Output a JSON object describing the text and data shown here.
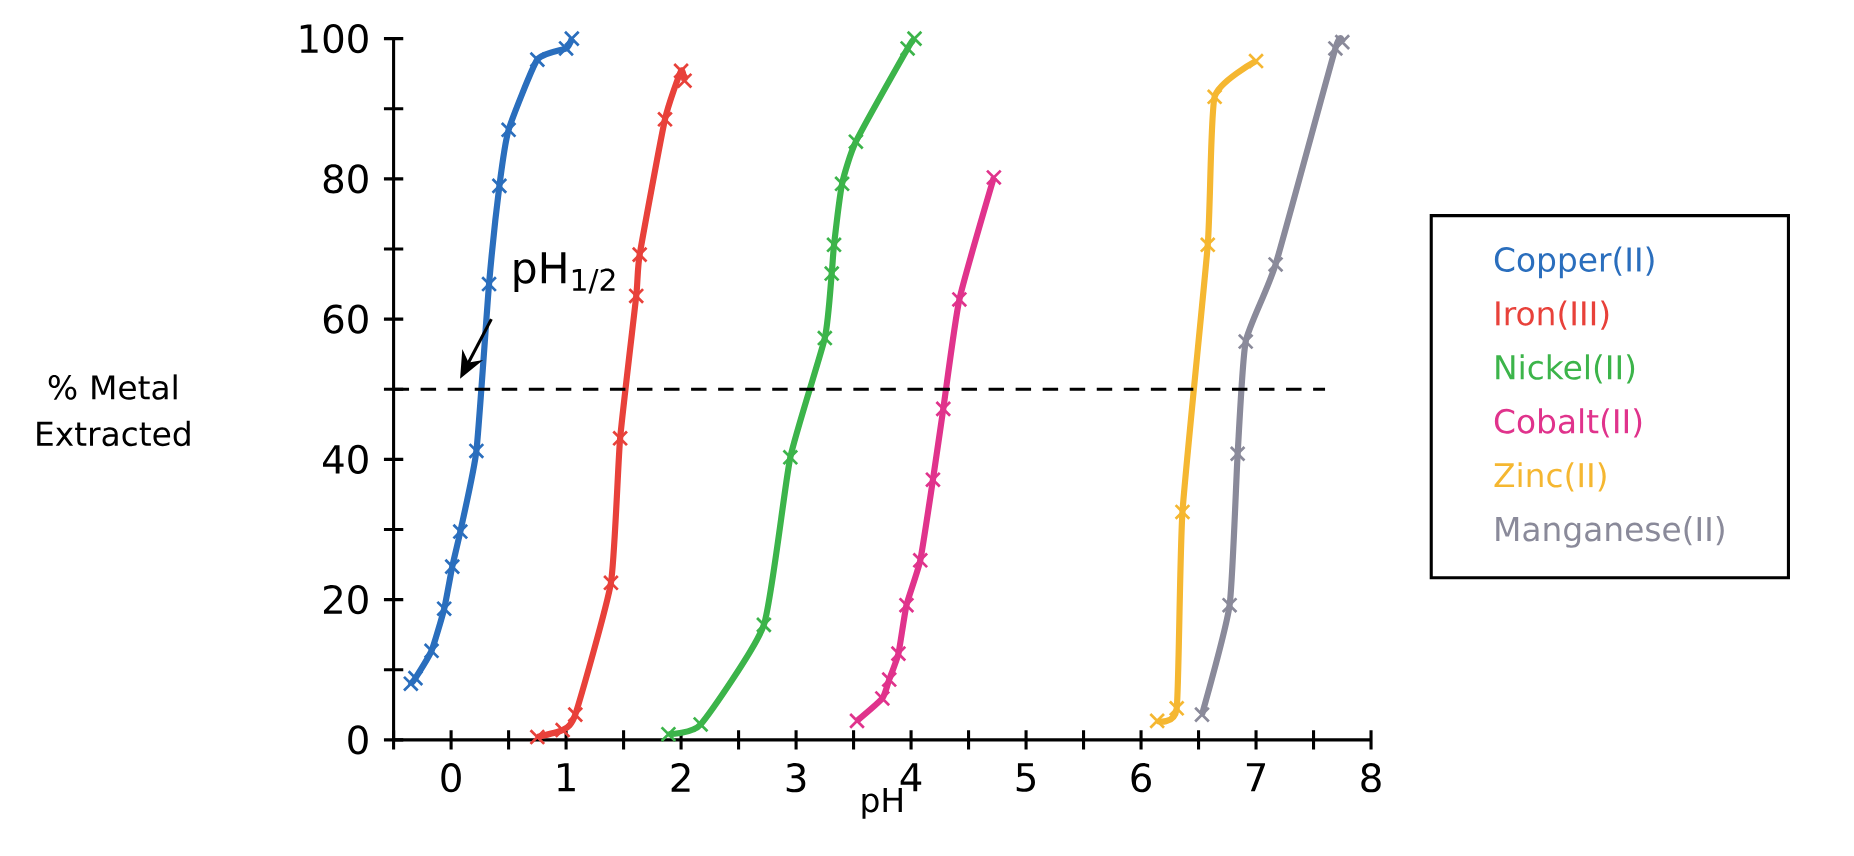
{
  "chart_data": {
    "type": "line",
    "xlabel": "pH",
    "ylabel": "% Metal Extracted",
    "xlim": [
      -0.5,
      8
    ],
    "ylim": [
      0,
      100
    ],
    "xticks": [
      {
        "value": -0.5,
        "label": null
      },
      0,
      {
        "value": 0.5,
        "label": null
      },
      1,
      {
        "value": 1.5,
        "label": null
      },
      2,
      {
        "value": 2.5,
        "label": null
      },
      3,
      {
        "value": 3.5,
        "label": null
      },
      4,
      {
        "value": 4.5,
        "label": null
      },
      5,
      {
        "value": 5.5,
        "label": null
      },
      6,
      {
        "value": 6.5,
        "label": null
      },
      7,
      {
        "value": 7.5,
        "label": null
      },
      8
    ],
    "yticks": [
      0,
      {
        "value": 10,
        "label": null
      },
      20,
      {
        "value": 30,
        "label": null
      },
      40,
      {
        "value": 50,
        "label": null
      },
      60,
      {
        "value": 70,
        "label": null
      },
      80,
      {
        "value": 90,
        "label": null
      },
      100
    ],
    "marker": "cross",
    "line_style": "solid",
    "grid": false,
    "legend": "right",
    "series": [
      {
        "name": "Copper(II)",
        "color": "#2a6ebd",
        "x": [
          -0.35,
          -0.31,
          -0.17,
          -0.06,
          0.01,
          0.08,
          0.22,
          0.33,
          0.42,
          0.5,
          0.75,
          1.0,
          1.05
        ],
        "values": [
          8,
          8.8,
          12.7,
          18.7,
          24.7,
          29.7,
          41.2,
          65,
          79,
          87,
          97,
          98.6,
          100
        ]
      },
      {
        "name": "Iron(III)",
        "color": "#e8413a",
        "x": [
          0.75,
          0.97,
          1.08,
          1.39,
          1.47,
          1.61,
          1.64,
          1.86,
          2.0,
          2.03
        ],
        "values": [
          0.4,
          1.4,
          3.6,
          22.4,
          43,
          63.3,
          69.2,
          88.5,
          95.4,
          94
        ]
      },
      {
        "name": "Nickel(II)",
        "color": "#3cb44a",
        "x": [
          1.89,
          2.17,
          2.72,
          2.95,
          3.25,
          3.31,
          3.33,
          3.4,
          3.52,
          3.97,
          4.03
        ],
        "values": [
          0.8,
          2.2,
          16.4,
          40.3,
          57.3,
          66.5,
          70.6,
          79.3,
          85.3,
          98.6,
          100
        ]
      },
      {
        "name": "Cobalt(II)",
        "color": "#e0338c",
        "x": [
          3.53,
          3.75,
          3.81,
          3.89,
          3.96,
          4.08,
          4.19,
          4.28,
          4.42,
          4.72
        ],
        "values": [
          2.7,
          5.9,
          8.6,
          12.3,
          19.2,
          25.6,
          37.1,
          47.2,
          62.8,
          80.2
        ]
      },
      {
        "name": "Zinc(II)",
        "color": "#f5b731",
        "x": [
          6.14,
          6.31,
          6.36,
          6.58,
          6.64,
          7.0
        ],
        "values": [
          2.7,
          4.5,
          32.5,
          70.6,
          91.7,
          96.8
        ]
      },
      {
        "name": "Manganese(II)",
        "color": "#8a8a9a",
        "x": [
          6.53,
          6.77,
          6.84,
          6.91,
          7.17,
          7.69,
          7.75
        ],
        "values": [
          3.6,
          19.2,
          40.8,
          56.8,
          67.8,
          98.6,
          99.5
        ]
      }
    ],
    "ref_lines": [
      {
        "axis": "y",
        "value": 50,
        "line_style": "dashed",
        "color": "#000000"
      }
    ],
    "annotations": [
      "pH$_{1/2}$"
    ]
  }
}
